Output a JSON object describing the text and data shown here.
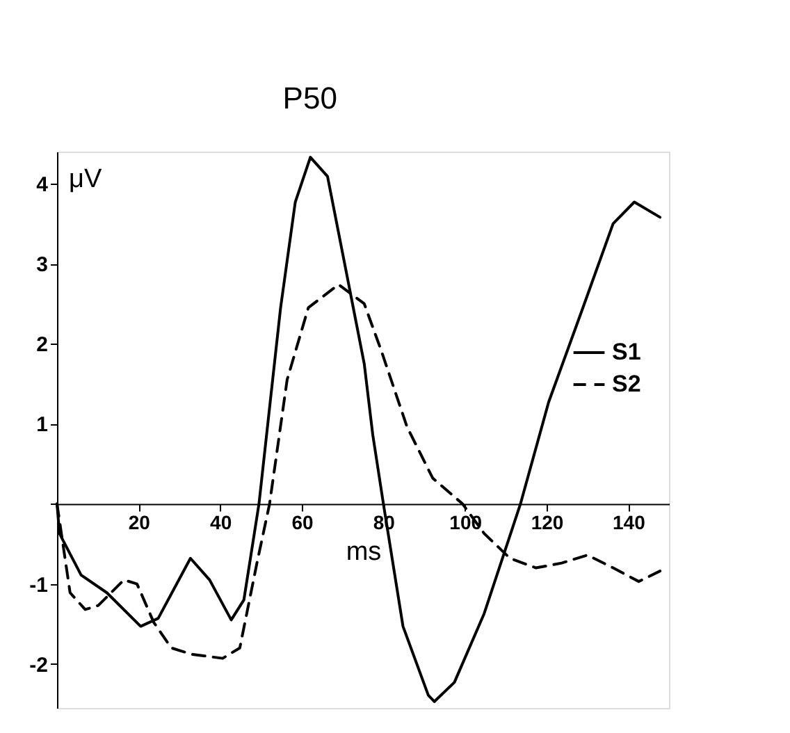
{
  "chart_data": {
    "type": "line",
    "xlabel": "ms",
    "ylabel": "μV",
    "annotations": [
      {
        "text": "P50",
        "x": 62,
        "y": 4.33
      }
    ],
    "xlim": [
      0,
      150
    ],
    "ylim": [
      -2.55,
      4.4
    ],
    "xticks": [
      {
        "value": 0,
        "label": null
      },
      20,
      40,
      60,
      80,
      100,
      120,
      140
    ],
    "yticks": [
      -2,
      -1,
      {
        "value": 0,
        "label": null
      },
      1,
      2,
      3,
      4
    ],
    "grid": false,
    "legend": "right",
    "marker": "none",
    "series": [
      {
        "name": "S1",
        "color": "#000000",
        "line_style": "solid",
        "x": [
          0,
          0.6,
          5.9,
          12.2,
          20.5,
          24.8,
          32.7,
          37.4,
          42.7,
          45.8,
          49.5,
          54.8,
          58.4,
          62.1,
          66.3,
          71,
          75.3,
          77.4,
          80,
          84.8,
          91,
          92.5,
          97.4,
          104.7,
          113.6,
          120.5,
          128.9,
          136.3,
          141.5,
          147.8
        ],
        "values": [
          0,
          -0.37,
          -0.89,
          -1.11,
          -1.53,
          -1.43,
          -0.68,
          -0.95,
          -1.45,
          -1.2,
          0,
          2.45,
          3.77,
          4.33,
          4.09,
          2.87,
          1.75,
          0.86,
          0,
          -1.53,
          -2.39,
          -2.47,
          -2.23,
          -1.37,
          0,
          1.27,
          2.45,
          3.5,
          3.77,
          3.58
        ]
      },
      {
        "name": "S2",
        "color": "#000000",
        "line_style": "dashed",
        "x": [
          0,
          3.2,
          6.9,
          10.1,
          16.4,
          19.6,
          23.7,
          28,
          33.1,
          40.6,
          44.8,
          49,
          52.1,
          56.4,
          61.6,
          69,
          75.3,
          79.5,
          85.8,
          92.1,
          99.4,
          104.7,
          111,
          117.4,
          123.7,
          130,
          136.3,
          142.6,
          147.8
        ],
        "values": [
          0,
          -1.11,
          -1.32,
          -1.27,
          -0.95,
          -1.0,
          -1.48,
          -1.8,
          -1.88,
          -1.93,
          -1.8,
          -0.74,
          0,
          1.55,
          2.45,
          2.74,
          2.5,
          1.91,
          0.96,
          0.32,
          0,
          -0.37,
          -0.68,
          -0.8,
          -0.74,
          -0.64,
          -0.8,
          -0.97,
          -0.84
        ]
      }
    ]
  }
}
